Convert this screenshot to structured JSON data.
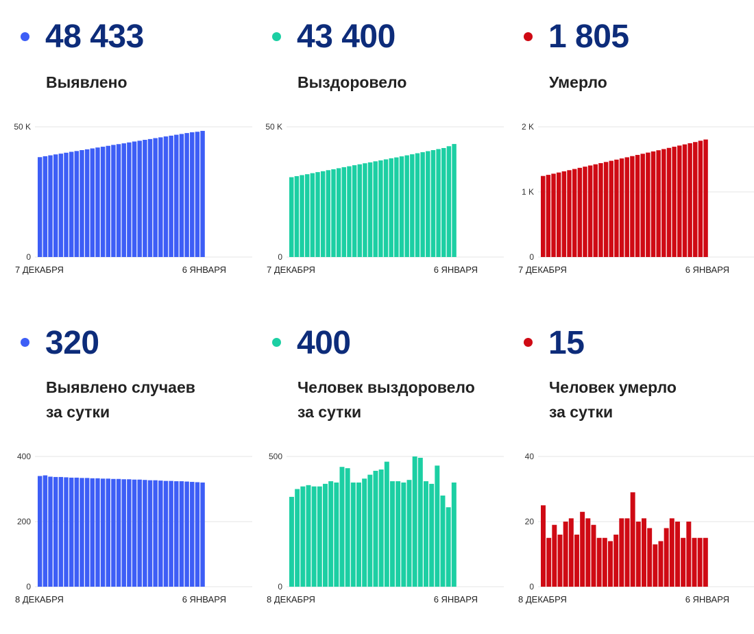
{
  "panels": [
    {
      "value": "48 433",
      "label_lines": [
        "Выявлено"
      ],
      "color": "#3d5ef6",
      "chart_data": {
        "type": "bar",
        "title": "Выявлено",
        "ylim": [
          0,
          50000
        ],
        "yticks": [
          {
            "value": 0,
            "label": "0"
          },
          {
            "value": 50000,
            "label": "50 K"
          }
        ],
        "xtick_labels": [
          "7 ДЕКАБРЯ",
          "6 ЯНВАРЯ"
        ],
        "grid": true,
        "values": [
          38350,
          38700,
          39050,
          39400,
          39700,
          40050,
          40400,
          40700,
          41050,
          41350,
          41700,
          42050,
          42350,
          42700,
          43050,
          43350,
          43650,
          44000,
          44350,
          44650,
          45000,
          45300,
          45650,
          45950,
          46300,
          46600,
          46950,
          47250,
          47600,
          47900,
          48100,
          48433
        ]
      }
    },
    {
      "value": "43 400",
      "label_lines": [
        "Выздоровело"
      ],
      "color": "#1ccfa3",
      "chart_data": {
        "type": "bar",
        "title": "Выздоровело",
        "ylim": [
          0,
          50000
        ],
        "yticks": [
          {
            "value": 0,
            "label": "0"
          },
          {
            "value": 50000,
            "label": "50 K"
          }
        ],
        "xtick_labels": [
          "7 ДЕКАБРЯ",
          "6 ЯНВАРЯ"
        ],
        "grid": true,
        "values": [
          30650,
          31050,
          31450,
          31800,
          32200,
          32600,
          32950,
          33350,
          33700,
          34100,
          34500,
          34850,
          35250,
          35600,
          36000,
          36350,
          36750,
          37100,
          37500,
          37900,
          38250,
          38650,
          39050,
          39450,
          39850,
          40250,
          40650,
          41050,
          41450,
          41850,
          42550,
          43400
        ]
      }
    },
    {
      "value": "1 805",
      "label_lines": [
        "Умерло"
      ],
      "color": "#cf0a14",
      "chart_data": {
        "type": "bar",
        "title": "Умерло",
        "ylim": [
          0,
          2000
        ],
        "yticks": [
          {
            "value": 0,
            "label": "0"
          },
          {
            "value": 1000,
            "label": "1 K"
          },
          {
            "value": 2000,
            "label": "2 K"
          }
        ],
        "xtick_labels": [
          "7 ДЕКАБРЯ",
          "6 ЯНВАРЯ"
        ],
        "grid": true,
        "values": [
          1245,
          1262,
          1280,
          1298,
          1316,
          1334,
          1352,
          1370,
          1388,
          1406,
          1424,
          1442,
          1460,
          1478,
          1496,
          1514,
          1532,
          1550,
          1568,
          1586,
          1604,
          1622,
          1640,
          1658,
          1676,
          1694,
          1712,
          1730,
          1748,
          1766,
          1786,
          1805
        ]
      }
    },
    {
      "value": "320",
      "label_lines": [
        "Выявлено случаев",
        "за сутки"
      ],
      "color": "#3d5ef6",
      "chart_data": {
        "type": "bar",
        "title": "Выявлено случаев за сутки",
        "ylim": [
          0,
          400
        ],
        "yticks": [
          {
            "value": 0,
            "label": "0"
          },
          {
            "value": 200,
            "label": "200"
          },
          {
            "value": 400,
            "label": "400"
          }
        ],
        "xtick_labels": [
          "8 ДЕКАБРЯ",
          "6 ЯНВАРЯ"
        ],
        "grid": true,
        "values": [
          340,
          342,
          338,
          337,
          337,
          336,
          335,
          335,
          334,
          334,
          333,
          333,
          332,
          332,
          331,
          331,
          330,
          330,
          329,
          329,
          328,
          327,
          327,
          326,
          325,
          325,
          324,
          324,
          323,
          322,
          321,
          320
        ]
      }
    },
    {
      "value": "400",
      "label_lines": [
        "Человек выздоровело",
        "за сутки"
      ],
      "color": "#1ccfa3",
      "chart_data": {
        "type": "bar",
        "title": "Человек выздоровело за сутки",
        "ylim": [
          0,
          500
        ],
        "yticks": [
          {
            "value": 0,
            "label": "0"
          },
          {
            "value": 500,
            "label": "500"
          }
        ],
        "xtick_labels": [
          "8 ДЕКАБРЯ",
          "6 ЯНВАРЯ"
        ],
        "grid": true,
        "values": [
          345,
          375,
          385,
          390,
          385,
          385,
          395,
          405,
          400,
          460,
          455,
          400,
          400,
          415,
          430,
          445,
          450,
          480,
          405,
          405,
          400,
          410,
          500,
          495,
          405,
          395,
          465,
          350,
          305,
          400
        ]
      }
    },
    {
      "value": "15",
      "label_lines": [
        "Человек умерло",
        "за сутки"
      ],
      "color": "#cf0a14",
      "chart_data": {
        "type": "bar",
        "title": "Человек умерло за сутки",
        "ylim": [
          0,
          40
        ],
        "yticks": [
          {
            "value": 0,
            "label": "0"
          },
          {
            "value": 20,
            "label": "20"
          },
          {
            "value": 40,
            "label": "40"
          }
        ],
        "xtick_labels": [
          "8 ДЕКАБРЯ",
          "6 ЯНВАРЯ"
        ],
        "grid": true,
        "values": [
          25,
          15,
          19,
          16,
          20,
          21,
          16,
          23,
          21,
          19,
          15,
          15,
          14,
          16,
          21,
          21,
          29,
          20,
          21,
          18,
          13,
          14,
          18,
          21,
          20,
          15,
          20,
          15,
          15,
          15
        ]
      }
    }
  ]
}
